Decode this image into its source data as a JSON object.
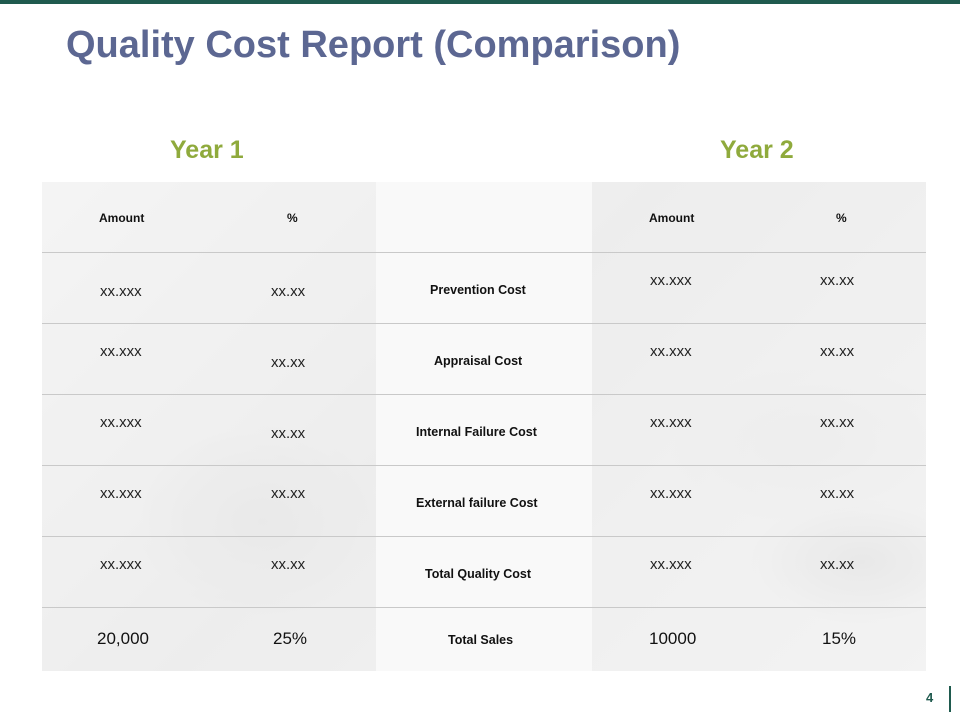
{
  "title": "Quality Cost Report (Comparison)",
  "years": {
    "year1": "Year 1",
    "year2": "Year 2"
  },
  "headers": {
    "y1_amount": "Amount",
    "y1_pct": "%",
    "y2_amount": "Amount",
    "y2_pct": "%"
  },
  "rows": [
    {
      "label": "Prevention Cost",
      "y1_amount": "xx.xxx",
      "y1_pct": "xx.xx",
      "y2_amount": "xx.xxx",
      "y2_pct": "xx.xx"
    },
    {
      "label": "Appraisal Cost",
      "y1_amount": "xx.xxx",
      "y1_pct": "xx.xx",
      "y2_amount": "xx.xxx",
      "y2_pct": "xx.xx"
    },
    {
      "label": "Internal Failure Cost",
      "y1_amount": "xx.xxx",
      "y1_pct": "xx.xx",
      "y2_amount": "xx.xxx",
      "y2_pct": "xx.xx"
    },
    {
      "label": "External failure Cost",
      "y1_amount": "xx.xxx",
      "y1_pct": "xx.xx",
      "y2_amount": "xx.xxx",
      "y2_pct": "xx.xx"
    },
    {
      "label": "Total Quality Cost",
      "y1_amount": "xx.xxx",
      "y1_pct": "xx.xx",
      "y2_amount": "xx.xxx",
      "y2_pct": "xx.xx"
    },
    {
      "label": "Total Sales",
      "y1_amount": "20,000",
      "y1_pct": "25%",
      "y2_amount": "10000",
      "y2_pct": "15%"
    }
  ],
  "page_number": "4",
  "colors": {
    "title": "#5c6792",
    "year": "#8faa3c",
    "accent": "#1f5a4e"
  }
}
